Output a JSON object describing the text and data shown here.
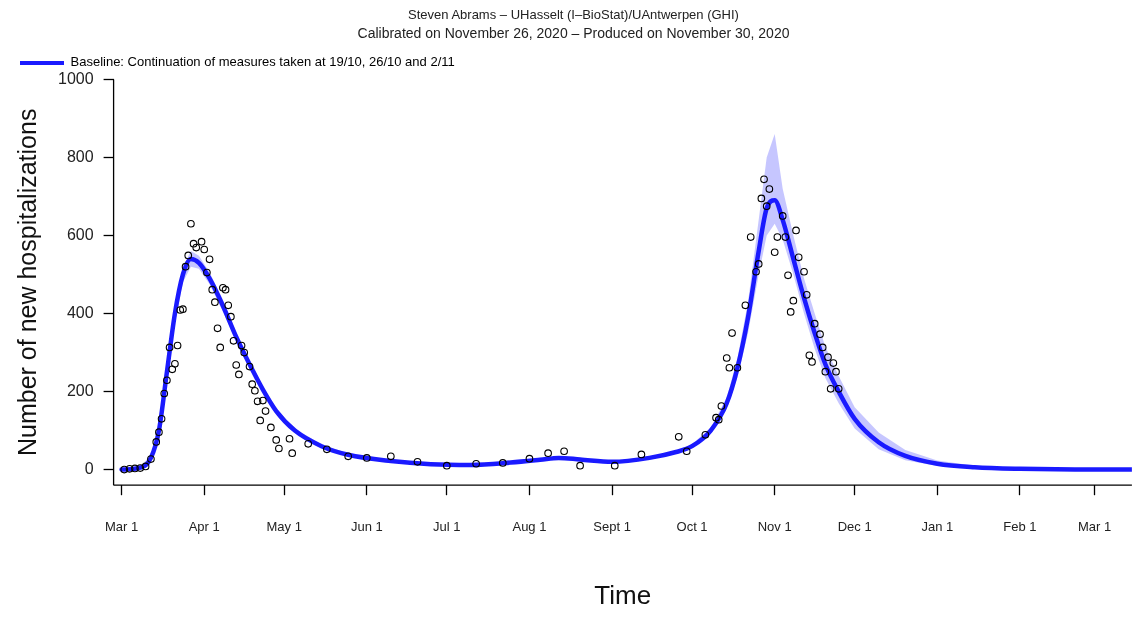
{
  "chart_data": {
    "type": "scatter",
    "title": "Steven Abrams – UHasselt (I–BioStat)/UAntwerpen (GHI)",
    "subtitle": "Calibrated on November 26, 2020 – Produced on November 30, 2020",
    "xlabel": "Time",
    "ylabel": "Number of new hospitalizations",
    "xlim": [
      "2020-02-27",
      "2021-03-15"
    ],
    "xticks": [
      {
        "value": "2020-03-01",
        "label": "Mar 1"
      },
      {
        "value": "2020-04-01",
        "label": "Apr 1"
      },
      {
        "value": "2020-05-01",
        "label": "May 1"
      },
      {
        "value": "2020-06-01",
        "label": "Jun 1"
      },
      {
        "value": "2020-07-01",
        "label": "Jul 1"
      },
      {
        "value": "2020-08-01",
        "label": "Aug 1"
      },
      {
        "value": "2020-09-01",
        "label": "Sept 1"
      },
      {
        "value": "2020-10-01",
        "label": "Oct 1"
      },
      {
        "value": "2020-11-01",
        "label": "Nov 1"
      },
      {
        "value": "2020-12-01",
        "label": "Dec 1"
      },
      {
        "value": "2021-01-01",
        "label": "Jan 1"
      },
      {
        "value": "2021-02-01",
        "label": "Feb 1"
      },
      {
        "value": "2021-03-01",
        "label": "Mar 1"
      }
    ],
    "ylim": [
      -40,
      1000
    ],
    "yticks": [
      0,
      200,
      400,
      600,
      800,
      1000
    ],
    "grid": false,
    "legend": "top left",
    "series": [
      {
        "color": "#000000",
        "marker": "circle",
        "x": [
          "2020-03-02",
          "2020-03-04",
          "2020-03-06",
          "2020-03-08",
          "2020-03-10",
          "2020-03-12",
          "2020-03-14",
          "2020-03-15",
          "2020-03-16",
          "2020-03-17",
          "2020-03-18",
          "2020-03-19",
          "2020-03-20",
          "2020-03-21",
          "2020-03-22",
          "2020-03-23",
          "2020-03-24",
          "2020-03-25",
          "2020-03-26",
          "2020-03-27",
          "2020-03-28",
          "2020-03-29",
          "2020-03-31",
          "2020-04-01",
          "2020-04-02",
          "2020-04-03",
          "2020-04-04",
          "2020-04-05",
          "2020-04-06",
          "2020-04-07",
          "2020-04-08",
          "2020-04-09",
          "2020-04-10",
          "2020-04-11",
          "2020-04-12",
          "2020-04-13",
          "2020-04-14",
          "2020-04-15",
          "2020-04-16",
          "2020-04-18",
          "2020-04-19",
          "2020-04-20",
          "2020-04-21",
          "2020-04-22",
          "2020-04-23",
          "2020-04-24",
          "2020-04-26",
          "2020-04-28",
          "2020-04-29",
          "2020-05-03",
          "2020-05-04",
          "2020-05-10",
          "2020-05-17",
          "2020-05-25",
          "2020-06-01",
          "2020-06-10",
          "2020-06-20",
          "2020-07-01",
          "2020-07-12",
          "2020-07-22",
          "2020-08-01",
          "2020-08-08",
          "2020-08-14",
          "2020-08-20",
          "2020-09-02",
          "2020-09-12",
          "2020-09-26",
          "2020-09-29",
          "2020-10-06",
          "2020-10-10",
          "2020-10-11",
          "2020-10-12",
          "2020-10-14",
          "2020-10-15",
          "2020-10-16",
          "2020-10-18",
          "2020-10-21",
          "2020-10-23",
          "2020-10-25",
          "2020-10-26",
          "2020-10-27",
          "2020-10-28",
          "2020-10-29",
          "2020-10-30",
          "2020-11-01",
          "2020-11-02",
          "2020-11-04",
          "2020-11-05",
          "2020-11-06",
          "2020-11-07",
          "2020-11-08",
          "2020-11-09",
          "2020-11-10",
          "2020-11-12",
          "2020-11-13",
          "2020-11-14",
          "2020-11-15",
          "2020-11-16",
          "2020-11-18",
          "2020-11-19",
          "2020-11-20",
          "2020-11-21",
          "2020-11-22",
          "2020-11-23",
          "2020-11-24",
          "2020-11-25"
        ],
        "values": [
          0,
          2,
          3,
          4,
          8,
          27,
          71,
          96,
          130,
          195,
          229,
          313,
          257,
          271,
          318,
          409,
          411,
          520,
          549,
          630,
          579,
          569,
          584,
          564,
          505,
          539,
          461,
          429,
          362,
          313,
          466,
          461,
          421,
          392,
          330,
          268,
          244,
          318,
          300,
          264,
          219,
          202,
          175,
          126,
          177,
          150,
          108,
          76,
          54,
          79,
          42,
          66,
          52,
          34,
          30,
          34,
          20,
          10,
          15,
          17,
          28,
          42,
          47,
          10,
          10,
          39,
          84,
          47,
          89,
          133,
          128,
          163,
          286,
          261,
          350,
          261,
          421,
          596,
          507,
          527,
          695,
          744,
          675,
          719,
          557,
          596,
          650,
          596,
          498,
          404,
          433,
          613,
          544,
          507,
          448,
          293,
          276,
          374,
          347,
          313,
          251,
          288,
          207,
          273,
          251,
          207
        ]
      },
      {
        "type": "line",
        "name": "Baseline: Continuation of measures taken at 19/10, 26/10 and 2/11",
        "color": "#1a1aff",
        "marker": "none",
        "line_style": "solid",
        "x": [
          "2020-03-01",
          "2020-03-08",
          "2020-03-12",
          "2020-03-15",
          "2020-03-18",
          "2020-03-21",
          "2020-03-24",
          "2020-03-27",
          "2020-03-30",
          "2020-04-03",
          "2020-04-08",
          "2020-04-13",
          "2020-04-18",
          "2020-04-23",
          "2020-04-28",
          "2020-05-05",
          "2020-05-15",
          "2020-05-25",
          "2020-06-10",
          "2020-06-25",
          "2020-07-10",
          "2020-07-25",
          "2020-08-05",
          "2020-08-12",
          "2020-08-20",
          "2020-09-01",
          "2020-09-15",
          "2020-09-25",
          "2020-10-01",
          "2020-10-08",
          "2020-10-14",
          "2020-10-18",
          "2020-10-22",
          "2020-10-26",
          "2020-10-29",
          "2020-11-01",
          "2020-11-04",
          "2020-11-08",
          "2020-11-12",
          "2020-11-16",
          "2020-11-20",
          "2020-11-25",
          "2020-12-01",
          "2020-12-10",
          "2020-12-20",
          "2021-01-01",
          "2021-01-15",
          "2021-02-01",
          "2021-03-01",
          "2021-03-15"
        ],
        "values": [
          0,
          5,
          30,
          100,
          250,
          400,
          500,
          540,
          530,
          490,
          420,
          340,
          270,
          205,
          150,
          100,
          60,
          38,
          22,
          14,
          12,
          18,
          25,
          30,
          26,
          20,
          30,
          45,
          60,
          100,
          170,
          260,
          390,
          560,
          670,
          690,
          640,
          540,
          440,
          350,
          270,
          200,
          130,
          70,
          35,
          15,
          6,
          2,
          0,
          0
        ],
        "lower": [
          0,
          3,
          22,
          85,
          225,
          375,
          480,
          520,
          515,
          475,
          405,
          328,
          260,
          197,
          143,
          95,
          56,
          35,
          20,
          12,
          10,
          16,
          23,
          27,
          24,
          18,
          27,
          41,
          55,
          92,
          155,
          235,
          350,
          500,
          600,
          630,
          590,
          500,
          400,
          310,
          235,
          170,
          105,
          52,
          24,
          9,
          3,
          1,
          0,
          0
        ],
        "upper": [
          0,
          7,
          38,
          115,
          275,
          425,
          520,
          560,
          548,
          505,
          435,
          352,
          280,
          213,
          157,
          105,
          64,
          41,
          24,
          16,
          14,
          20,
          27,
          33,
          28,
          22,
          33,
          49,
          65,
          108,
          185,
          285,
          430,
          640,
          800,
          860,
          720,
          600,
          490,
          400,
          315,
          240,
          160,
          95,
          50,
          23,
          10,
          4,
          1,
          1
        ]
      }
    ]
  }
}
